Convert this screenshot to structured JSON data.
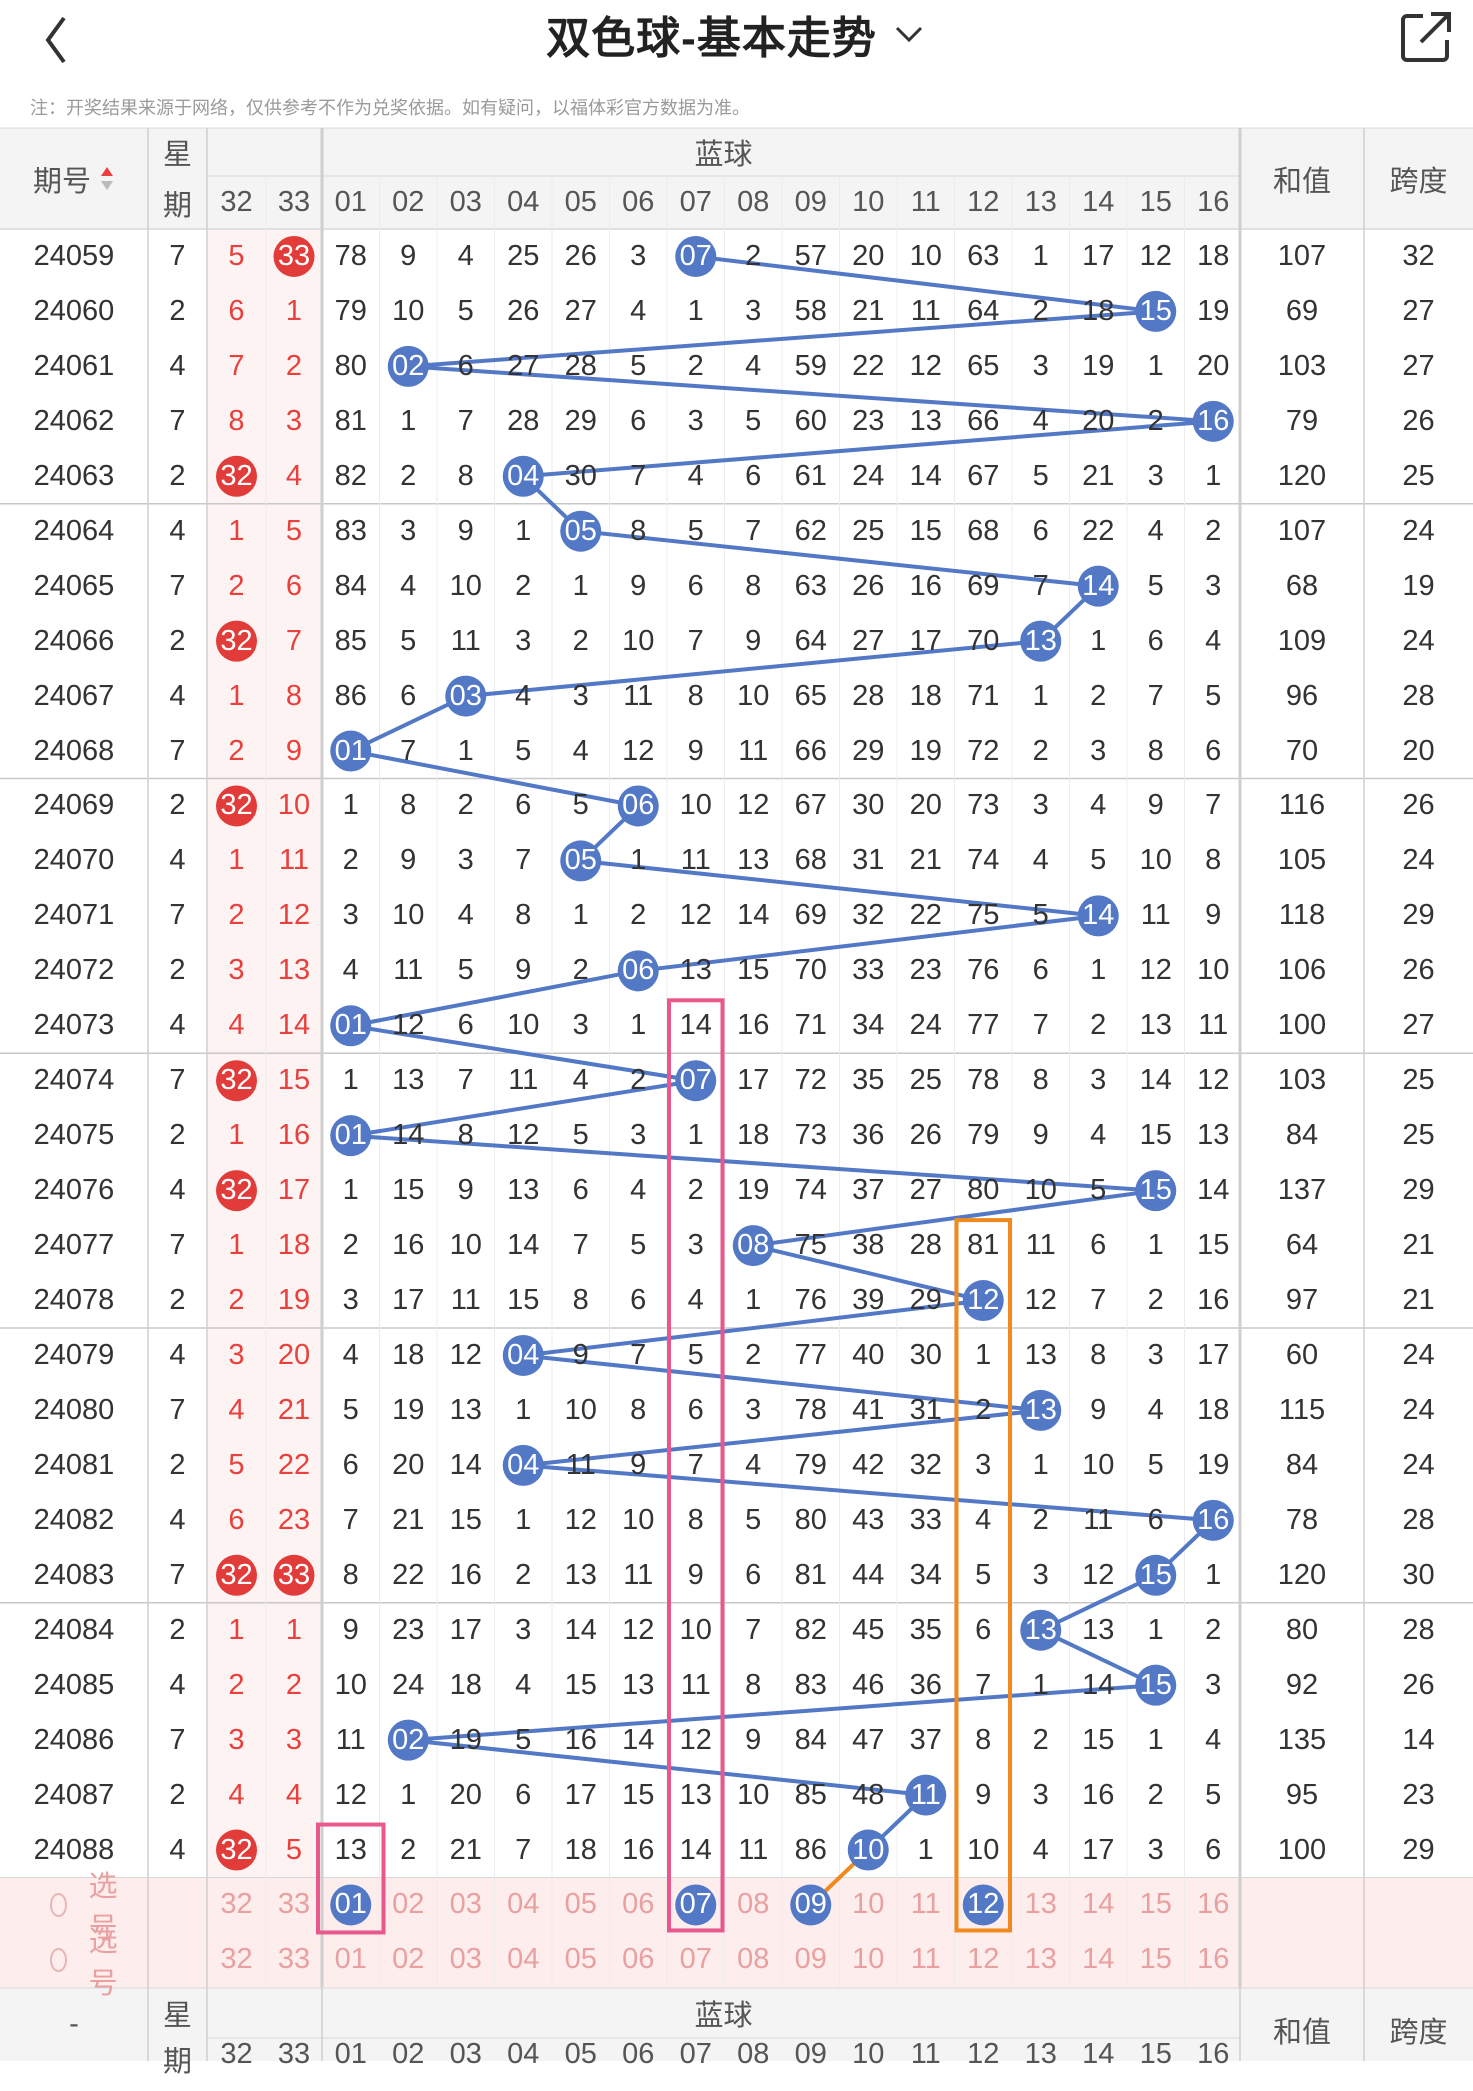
{
  "header": {
    "title": "双色球-基本走势",
    "back_icon": "chevron-left-icon",
    "dropdown_icon": "chevron-down-icon",
    "share_icon": "share-icon"
  },
  "notice": "注：开奖结果来源于网络，仅供参考不作为兑奖依据。如有疑问，以福体彩官方数据为准。",
  "table": {
    "col_issue": "期号",
    "col_week_line1": "星",
    "col_week_line2": "期",
    "blue_group": "蓝球",
    "col_sum": "和值",
    "col_span": "跨度",
    "red_tail_cols": [
      "32",
      "33"
    ],
    "blue_cols": [
      "01",
      "02",
      "03",
      "04",
      "05",
      "06",
      "07",
      "08",
      "09",
      "10",
      "11",
      "12",
      "13",
      "14",
      "15",
      "16"
    ],
    "rows": [
      {
        "issue": "24059",
        "week": "7",
        "r32": "5",
        "r33": "33",
        "b": [
          "78",
          "9",
          "4",
          "25",
          "26",
          "3",
          "07",
          "2",
          "57",
          "20",
          "10",
          "63",
          "1",
          "17",
          "12",
          "18"
        ],
        "sum": "107",
        "span": "32"
      },
      {
        "issue": "24060",
        "week": "2",
        "r32": "6",
        "r33": "1",
        "b": [
          "79",
          "10",
          "5",
          "26",
          "27",
          "4",
          "1",
          "3",
          "58",
          "21",
          "11",
          "64",
          "2",
          "18",
          "15",
          "19"
        ],
        "sum": "69",
        "span": "27"
      },
      {
        "issue": "24061",
        "week": "4",
        "r32": "7",
        "r33": "2",
        "b": [
          "80",
          "02",
          "6",
          "27",
          "28",
          "5",
          "2",
          "4",
          "59",
          "22",
          "12",
          "65",
          "3",
          "19",
          "1",
          "20"
        ],
        "sum": "103",
        "span": "27"
      },
      {
        "issue": "24062",
        "week": "7",
        "r32": "8",
        "r33": "3",
        "b": [
          "81",
          "1",
          "7",
          "28",
          "29",
          "6",
          "3",
          "5",
          "60",
          "23",
          "13",
          "66",
          "4",
          "20",
          "2",
          "16"
        ],
        "sum": "79",
        "span": "26"
      },
      {
        "issue": "24063",
        "week": "2",
        "r32": "32",
        "r33": "4",
        "b": [
          "82",
          "2",
          "8",
          "04",
          "30",
          "7",
          "4",
          "6",
          "61",
          "24",
          "14",
          "67",
          "5",
          "21",
          "3",
          "1"
        ],
        "sum": "120",
        "span": "25"
      },
      {
        "issue": "24064",
        "week": "4",
        "r32": "1",
        "r33": "5",
        "b": [
          "83",
          "3",
          "9",
          "1",
          "05",
          "8",
          "5",
          "7",
          "62",
          "25",
          "15",
          "68",
          "6",
          "22",
          "4",
          "2"
        ],
        "sum": "107",
        "span": "24"
      },
      {
        "issue": "24065",
        "week": "7",
        "r32": "2",
        "r33": "6",
        "b": [
          "84",
          "4",
          "10",
          "2",
          "1",
          "9",
          "6",
          "8",
          "63",
          "26",
          "16",
          "69",
          "7",
          "14",
          "5",
          "3"
        ],
        "sum": "68",
        "span": "19"
      },
      {
        "issue": "24066",
        "week": "2",
        "r32": "32",
        "r33": "7",
        "b": [
          "85",
          "5",
          "11",
          "3",
          "2",
          "10",
          "7",
          "9",
          "64",
          "27",
          "17",
          "70",
          "13",
          "1",
          "6",
          "4"
        ],
        "sum": "109",
        "span": "24"
      },
      {
        "issue": "24067",
        "week": "4",
        "r32": "1",
        "r33": "8",
        "b": [
          "86",
          "6",
          "03",
          "4",
          "3",
          "11",
          "8",
          "10",
          "65",
          "28",
          "18",
          "71",
          "1",
          "2",
          "7",
          "5"
        ],
        "sum": "96",
        "span": "28"
      },
      {
        "issue": "24068",
        "week": "7",
        "r32": "2",
        "r33": "9",
        "b": [
          "01",
          "7",
          "1",
          "5",
          "4",
          "12",
          "9",
          "11",
          "66",
          "29",
          "19",
          "72",
          "2",
          "3",
          "8",
          "6"
        ],
        "sum": "70",
        "span": "20"
      },
      {
        "issue": "24069",
        "week": "2",
        "r32": "32",
        "r33": "10",
        "b": [
          "1",
          "8",
          "2",
          "6",
          "5",
          "06",
          "10",
          "12",
          "67",
          "30",
          "20",
          "73",
          "3",
          "4",
          "9",
          "7"
        ],
        "sum": "116",
        "span": "26"
      },
      {
        "issue": "24070",
        "week": "4",
        "r32": "1",
        "r33": "11",
        "b": [
          "2",
          "9",
          "3",
          "7",
          "05",
          "1",
          "11",
          "13",
          "68",
          "31",
          "21",
          "74",
          "4",
          "5",
          "10",
          "8"
        ],
        "sum": "105",
        "span": "24"
      },
      {
        "issue": "24071",
        "week": "7",
        "r32": "2",
        "r33": "12",
        "b": [
          "3",
          "10",
          "4",
          "8",
          "1",
          "2",
          "12",
          "14",
          "69",
          "32",
          "22",
          "75",
          "5",
          "14",
          "11",
          "9"
        ],
        "sum": "118",
        "span": "29"
      },
      {
        "issue": "24072",
        "week": "2",
        "r32": "3",
        "r33": "13",
        "b": [
          "4",
          "11",
          "5",
          "9",
          "2",
          "06",
          "13",
          "15",
          "70",
          "33",
          "23",
          "76",
          "6",
          "1",
          "12",
          "10"
        ],
        "sum": "106",
        "span": "26"
      },
      {
        "issue": "24073",
        "week": "4",
        "r32": "4",
        "r33": "14",
        "b": [
          "01",
          "12",
          "6",
          "10",
          "3",
          "1",
          "14",
          "16",
          "71",
          "34",
          "24",
          "77",
          "7",
          "2",
          "13",
          "11"
        ],
        "sum": "100",
        "span": "27"
      },
      {
        "issue": "24074",
        "week": "7",
        "r32": "32",
        "r33": "15",
        "b": [
          "1",
          "13",
          "7",
          "11",
          "4",
          "2",
          "07",
          "17",
          "72",
          "35",
          "25",
          "78",
          "8",
          "3",
          "14",
          "12"
        ],
        "sum": "103",
        "span": "25"
      },
      {
        "issue": "24075",
        "week": "2",
        "r32": "1",
        "r33": "16",
        "b": [
          "01",
          "14",
          "8",
          "12",
          "5",
          "3",
          "1",
          "18",
          "73",
          "36",
          "26",
          "79",
          "9",
          "4",
          "15",
          "13"
        ],
        "sum": "84",
        "span": "25"
      },
      {
        "issue": "24076",
        "week": "4",
        "r32": "32",
        "r33": "17",
        "b": [
          "1",
          "15",
          "9",
          "13",
          "6",
          "4",
          "2",
          "19",
          "74",
          "37",
          "27",
          "80",
          "10",
          "5",
          "15",
          "14"
        ],
        "sum": "137",
        "span": "29"
      },
      {
        "issue": "24077",
        "week": "7",
        "r32": "1",
        "r33": "18",
        "b": [
          "2",
          "16",
          "10",
          "14",
          "7",
          "5",
          "3",
          "08",
          "75",
          "38",
          "28",
          "81",
          "11",
          "6",
          "1",
          "15"
        ],
        "sum": "64",
        "span": "21"
      },
      {
        "issue": "24078",
        "week": "2",
        "r32": "2",
        "r33": "19",
        "b": [
          "3",
          "17",
          "11",
          "15",
          "8",
          "6",
          "4",
          "1",
          "76",
          "39",
          "29",
          "12",
          "12",
          "7",
          "2",
          "16"
        ],
        "sum": "97",
        "span": "21"
      },
      {
        "issue": "24079",
        "week": "4",
        "r32": "3",
        "r33": "20",
        "b": [
          "4",
          "18",
          "12",
          "04",
          "9",
          "7",
          "5",
          "2",
          "77",
          "40",
          "30",
          "1",
          "13",
          "8",
          "3",
          "17"
        ],
        "sum": "60",
        "span": "24"
      },
      {
        "issue": "24080",
        "week": "7",
        "r32": "4",
        "r33": "21",
        "b": [
          "5",
          "19",
          "13",
          "1",
          "10",
          "8",
          "6",
          "3",
          "78",
          "41",
          "31",
          "2",
          "13",
          "9",
          "4",
          "18"
        ],
        "sum": "115",
        "span": "24"
      },
      {
        "issue": "24081",
        "week": "2",
        "r32": "5",
        "r33": "22",
        "b": [
          "6",
          "20",
          "14",
          "04",
          "11",
          "9",
          "7",
          "4",
          "79",
          "42",
          "32",
          "3",
          "1",
          "10",
          "5",
          "19"
        ],
        "sum": "84",
        "span": "24"
      },
      {
        "issue": "24082",
        "week": "4",
        "r32": "6",
        "r33": "23",
        "b": [
          "7",
          "21",
          "15",
          "1",
          "12",
          "10",
          "8",
          "5",
          "80",
          "43",
          "33",
          "4",
          "2",
          "11",
          "6",
          "16"
        ],
        "sum": "78",
        "span": "28"
      },
      {
        "issue": "24083",
        "week": "7",
        "r32": "32",
        "r33": "33",
        "b": [
          "8",
          "22",
          "16",
          "2",
          "13",
          "11",
          "9",
          "6",
          "81",
          "44",
          "34",
          "5",
          "3",
          "12",
          "15",
          "1"
        ],
        "sum": "120",
        "span": "30"
      },
      {
        "issue": "24084",
        "week": "2",
        "r32": "1",
        "r33": "1",
        "b": [
          "9",
          "23",
          "17",
          "3",
          "14",
          "12",
          "10",
          "7",
          "82",
          "45",
          "35",
          "6",
          "13",
          "13",
          "1",
          "2"
        ],
        "sum": "80",
        "span": "28"
      },
      {
        "issue": "24085",
        "week": "4",
        "r32": "2",
        "r33": "2",
        "b": [
          "10",
          "24",
          "18",
          "4",
          "15",
          "13",
          "11",
          "8",
          "83",
          "46",
          "36",
          "7",
          "1",
          "14",
          "15",
          "3"
        ],
        "sum": "92",
        "span": "26"
      },
      {
        "issue": "24086",
        "week": "7",
        "r32": "3",
        "r33": "3",
        "b": [
          "11",
          "02",
          "19",
          "5",
          "16",
          "14",
          "12",
          "9",
          "84",
          "47",
          "37",
          "8",
          "2",
          "15",
          "1",
          "4"
        ],
        "sum": "135",
        "span": "14"
      },
      {
        "issue": "24087",
        "week": "2",
        "r32": "4",
        "r33": "4",
        "b": [
          "12",
          "1",
          "20",
          "6",
          "17",
          "15",
          "13",
          "10",
          "85",
          "48",
          "11",
          "9",
          "3",
          "16",
          "2",
          "5"
        ],
        "sum": "95",
        "span": "23"
      },
      {
        "issue": "24088",
        "week": "4",
        "r32": "32",
        "r33": "5",
        "b": [
          "13",
          "2",
          "21",
          "7",
          "18",
          "16",
          "14",
          "11",
          "86",
          "10",
          "1",
          "10",
          "4",
          "17",
          "3",
          "6"
        ],
        "sum": "100",
        "span": "29"
      }
    ],
    "blue_hits": [
      7,
      15,
      2,
      16,
      4,
      5,
      14,
      13,
      3,
      1,
      6,
      5,
      14,
      6,
      1,
      7,
      1,
      15,
      8,
      12,
      4,
      13,
      4,
      16,
      15,
      13,
      15,
      2,
      11,
      10
    ],
    "select_label": "选号",
    "select_red": [
      "32",
      "33"
    ],
    "select_blue": [
      "01",
      "02",
      "03",
      "04",
      "05",
      "06",
      "07",
      "08",
      "09",
      "10",
      "11",
      "12",
      "13",
      "14",
      "15",
      "16"
    ],
    "pick_row1": [
      "01",
      "07",
      "09",
      "12"
    ],
    "footer": {
      "dash": "-",
      "week_line1": "星",
      "week_line2": "期",
      "blue_group": "蓝球",
      "sum": "和值",
      "span": "跨度",
      "red_tail_cols": [
        "32",
        "33"
      ],
      "blue_cols": [
        "01",
        "02",
        "03",
        "04",
        "05",
        "06",
        "07",
        "08",
        "09",
        "10",
        "11",
        "12",
        "13",
        "14",
        "15",
        "16"
      ]
    }
  },
  "colors": {
    "blue_ball": "#5278c6",
    "red_ball": "#e23c3a",
    "red_text": "#e8413d",
    "pink_box": "#e8588c",
    "orange_box": "#f08a1e",
    "orange_line": "#f08a1e",
    "select_bg": "#fdeeed",
    "grid_line": "#d0d0d0"
  }
}
